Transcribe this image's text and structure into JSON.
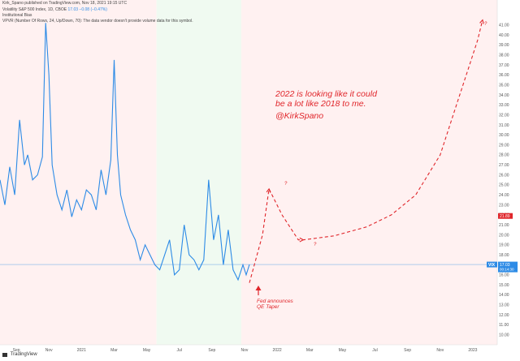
{
  "header": {
    "published": "Kirk_Spano published on TradingView.com, Nov 18, 2021 19:15 UTC",
    "symbol_line": "Volatility S&P 500 Index, 1D, CBOE",
    "symbol_values": "17.03 −0.08 (−0.47%)",
    "indicator_1": "Institutional Bias",
    "indicator_2": "VPVR (Number Of Rows, 24, Up/Down, 70): The data vendor doesn't provide volume data for this symbol."
  },
  "annotations": {
    "headline_line1": "2022 is looking like it could",
    "headline_line2": "be a lot like 2018 to me.",
    "handle": "@KirkSpano",
    "fed_line1": "Fed announces",
    "fed_line2": "QE Taper",
    "q1": "?",
    "q2": "?",
    "q3": "?"
  },
  "footer": {
    "brand": "TradingView"
  },
  "colors": {
    "line": "#2d8be6",
    "projection": "#e0262b",
    "bg_red": "#fff1f1",
    "bg_green": "#f0faf1",
    "axis_text": "#555555"
  },
  "chart_data": {
    "type": "line",
    "title": "",
    "xlabel": "",
    "ylabel": "",
    "ylim": [
      9.0,
      43.5
    ],
    "y_ticks": [
      "10.00",
      "11.00",
      "12.00",
      "13.00",
      "14.00",
      "15.00",
      "16.00",
      "17.00",
      "18.00",
      "19.00",
      "20.00",
      "21.00",
      "22.00",
      "23.00",
      "24.00",
      "25.00",
      "26.00",
      "27.00",
      "28.00",
      "29.00",
      "30.00",
      "31.00",
      "32.00",
      "33.00",
      "34.00",
      "35.00",
      "36.00",
      "37.00",
      "38.00",
      "39.00",
      "40.00",
      "41.00"
    ],
    "x_ticks": [
      "Sep",
      "Nov",
      "2021",
      "Mar",
      "May",
      "Jul",
      "Sep",
      "Nov",
      "2022",
      "Mar",
      "May",
      "Jul",
      "Sep",
      "Nov",
      "2023"
    ],
    "x_tick_months": [
      1,
      3,
      5,
      7,
      9,
      11,
      13,
      15,
      17,
      19,
      21,
      23,
      25,
      27,
      29
    ],
    "xlim_months": [
      0,
      30.5
    ],
    "last_price": {
      "value": 17.03,
      "symbol": "VIX",
      "label": "17.03",
      "countdown": "00:14:30"
    },
    "level_marker": {
      "value": 21.89,
      "label": "21.89"
    },
    "series": [
      {
        "name": "",
        "x_months": [
          0.0,
          0.3,
          0.6,
          0.9,
          1.2,
          1.5,
          1.7,
          2.0,
          2.3,
          2.6,
          2.8,
          3.0,
          3.2,
          3.5,
          3.8,
          4.1,
          4.4,
          4.7,
          5.0,
          5.3,
          5.6,
          5.9,
          6.2,
          6.5,
          6.8,
          7.0,
          7.2,
          7.4,
          7.7,
          8.0,
          8.3,
          8.6,
          8.9,
          9.2,
          9.5,
          9.8,
          10.1,
          10.4,
          10.7,
          11.0,
          11.3,
          11.6,
          11.9,
          12.2,
          12.5,
          12.8,
          13.1,
          13.4,
          13.7,
          14.0,
          14.3,
          14.6,
          14.9,
          15.1,
          15.3
        ],
        "values": [
          25.5,
          23.0,
          26.8,
          24.0,
          31.5,
          27.0,
          28.0,
          25.5,
          26.0,
          27.8,
          41.2,
          36.0,
          27.0,
          24.0,
          22.5,
          24.5,
          21.8,
          23.5,
          22.5,
          24.5,
          24.0,
          22.5,
          26.5,
          24.0,
          27.5,
          37.5,
          28.0,
          24.0,
          22.0,
          20.5,
          19.5,
          17.5,
          19.0,
          18.0,
          17.0,
          16.5,
          18.0,
          19.5,
          16.0,
          16.5,
          21.0,
          18.0,
          17.5,
          16.5,
          17.5,
          25.5,
          19.5,
          22.0,
          17.0,
          20.5,
          16.5,
          15.5,
          17.0,
          16.0,
          17.03
        ]
      },
      {
        "name": "",
        "x_months": [
          15.3,
          16.1,
          16.5,
          17.3,
          18.3,
          18.6,
          20.5,
          22.5,
          24.0,
          25.5,
          27.0,
          28.0,
          28.8,
          29.3,
          29.6
        ],
        "values": [
          15.2,
          20.0,
          24.6,
          22.0,
          19.5,
          19.5,
          19.9,
          20.8,
          22.0,
          24.0,
          28.0,
          33.0,
          37.0,
          39.5,
          41.5
        ]
      }
    ],
    "background_bands": [
      {
        "from_month": 0,
        "to_month": 9.6,
        "tone": "bg_red"
      },
      {
        "from_month": 9.6,
        "to_month": 14.8,
        "tone": "bg_green"
      },
      {
        "from_month": 14.8,
        "to_month": 30.5,
        "tone": "bg_red"
      }
    ]
  }
}
